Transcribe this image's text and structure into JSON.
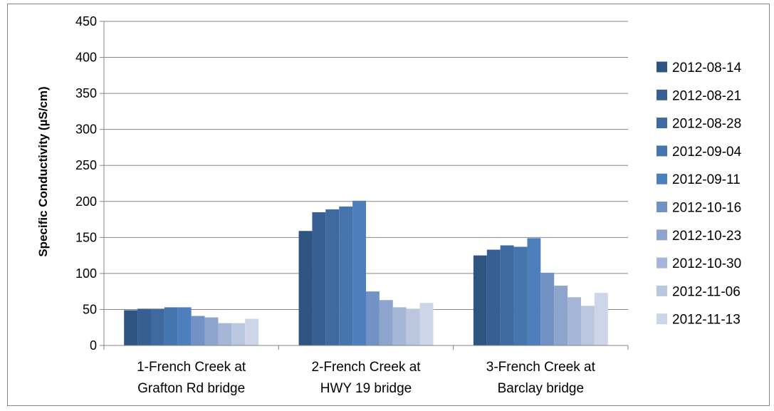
{
  "chart_data": {
    "type": "bar",
    "title": "",
    "xlabel": "",
    "ylabel": "Specific Conductivity  (µS/cm)",
    "ylim": [
      0,
      450
    ],
    "yticks": [
      0,
      50,
      100,
      150,
      200,
      250,
      300,
      350,
      400,
      450
    ],
    "grid": true,
    "legend_position": "right",
    "categories": [
      [
        "1-French Creek at",
        "Grafton Rd bridge"
      ],
      [
        "2-French Creek at",
        "HWY 19 bridge"
      ],
      [
        "3-French Creek at",
        "Barclay bridge"
      ]
    ],
    "series": [
      {
        "name": "2012-08-14",
        "color": "#2f5481",
        "values": [
          49,
          159,
          125
        ]
      },
      {
        "name": "2012-08-21",
        "color": "#385f91",
        "values": [
          51,
          185,
          133
        ]
      },
      {
        "name": "2012-08-28",
        "color": "#3f6aa0",
        "values": [
          51,
          189,
          139
        ]
      },
      {
        "name": "2012-09-04",
        "color": "#4674ad",
        "values": [
          53,
          193,
          137
        ]
      },
      {
        "name": "2012-09-11",
        "color": "#4d7fbd",
        "values": [
          53,
          201,
          149
        ]
      },
      {
        "name": "2012-10-16",
        "color": "#7292c5",
        "values": [
          41,
          75,
          101
        ]
      },
      {
        "name": "2012-10-23",
        "color": "#8da4cd",
        "values": [
          39,
          63,
          83
        ]
      },
      {
        "name": "2012-10-30",
        "color": "#a5b6d6",
        "values": [
          31,
          53,
          67
        ]
      },
      {
        "name": "2012-11-06",
        "color": "#bac7df",
        "values": [
          31,
          51,
          55
        ]
      },
      {
        "name": "2012-11-13",
        "color": "#cdd6e8",
        "values": [
          37,
          59,
          73
        ]
      }
    ]
  }
}
